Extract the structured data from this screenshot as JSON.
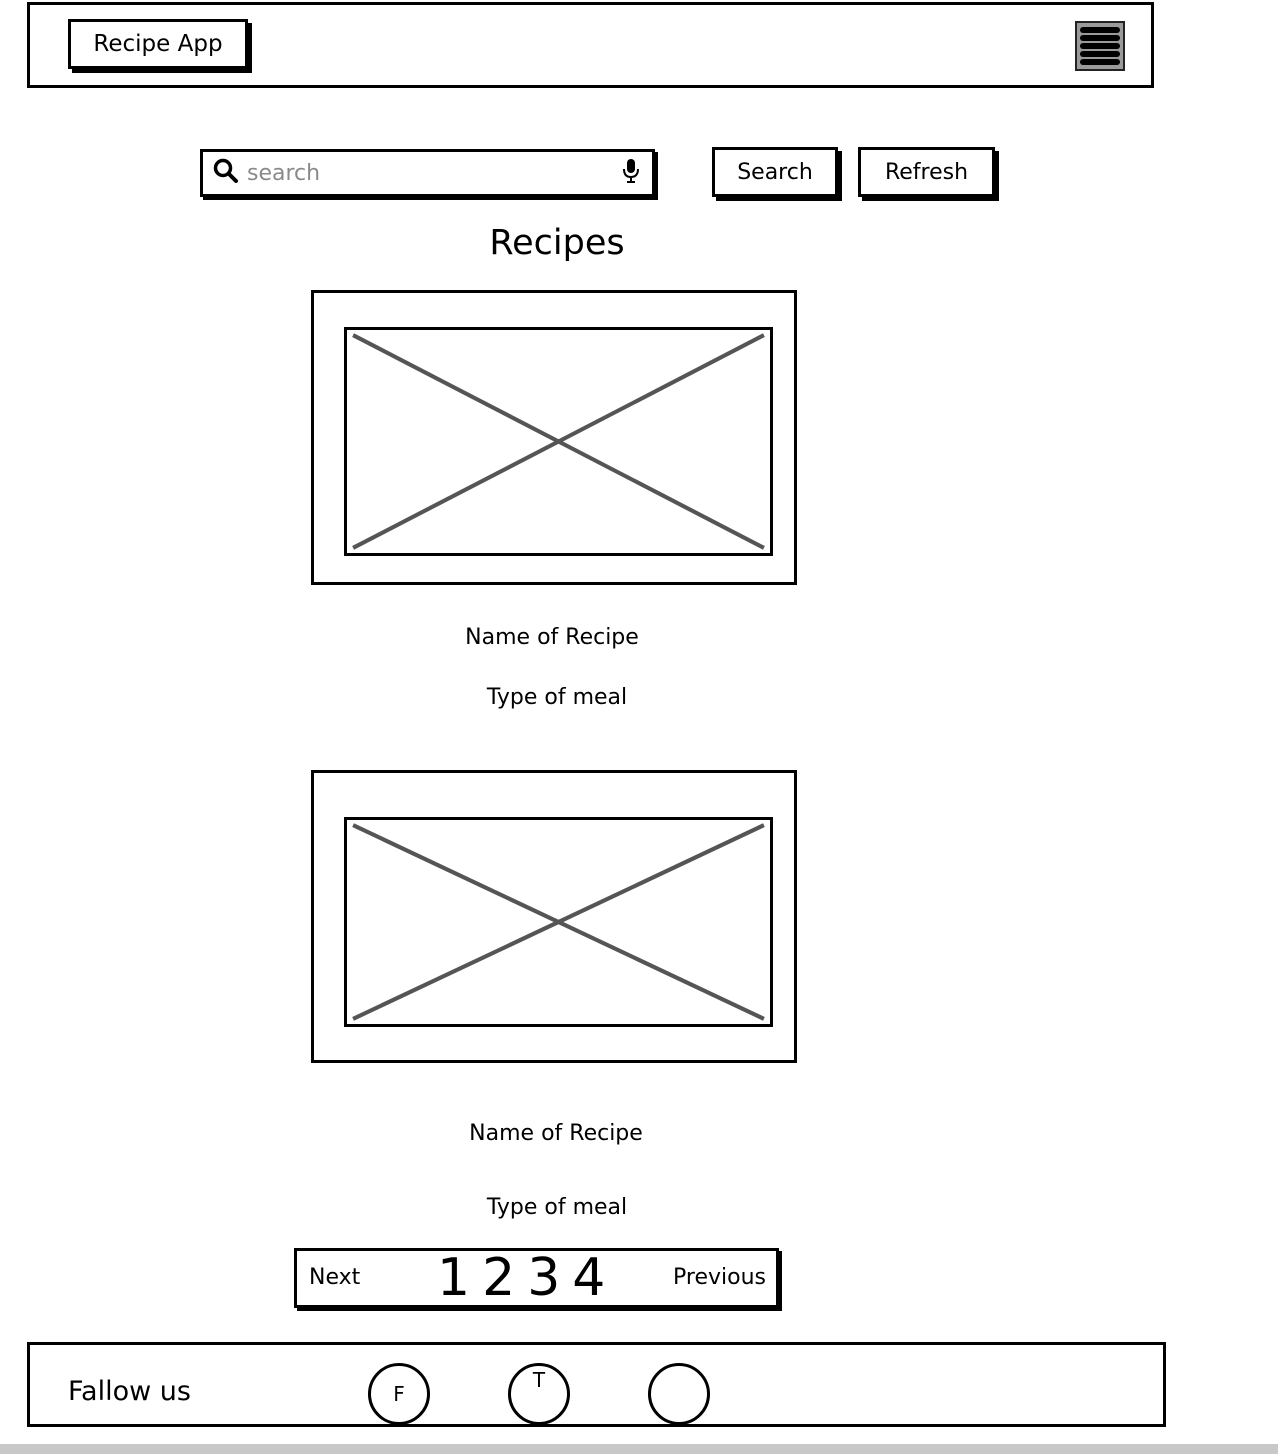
{
  "header": {
    "app_title": "Recipe App",
    "menu_icon": "hamburger-menu-icon"
  },
  "search": {
    "placeholder": "search",
    "value": "",
    "search_icon": "magnifier-icon",
    "mic_icon": "microphone-icon",
    "search_button": "Search",
    "refresh_button": "Refresh"
  },
  "main": {
    "title": "Recipes",
    "recipes": [
      {
        "name": "Name of Recipe",
        "meal_type": "Type of meal",
        "image": "image-placeholder"
      },
      {
        "name": "Name of Recipe",
        "meal_type": "Type of meal",
        "image": "image-placeholder"
      }
    ]
  },
  "pagination": {
    "next_label": "Next",
    "pages": [
      "1",
      "2",
      "3",
      "4"
    ],
    "previous_label": "Previous"
  },
  "footer": {
    "follow_label": "Fallow us",
    "social": [
      {
        "label": "F"
      },
      {
        "label": "T"
      },
      {
        "label": ""
      }
    ]
  }
}
